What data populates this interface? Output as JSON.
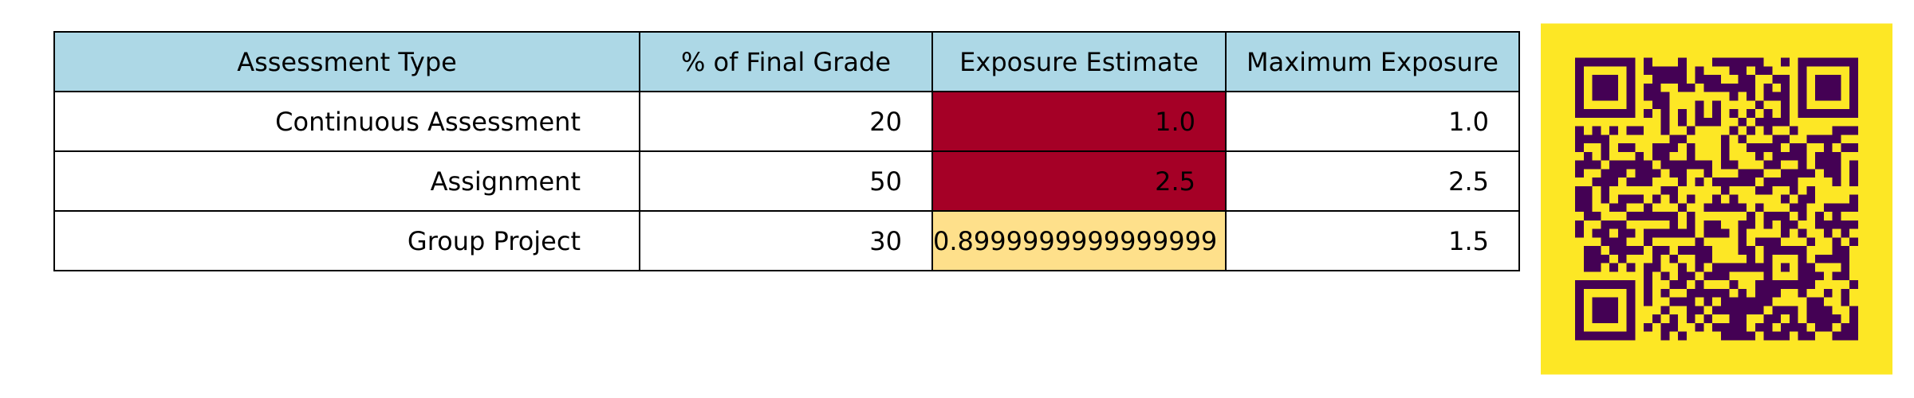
{
  "chart_data": {
    "type": "table",
    "columns": [
      "Assessment Type",
      "% of Final Grade",
      "Exposure Estimate",
      "Maximum Exposure"
    ],
    "rows": [
      [
        "Continuous Assessment",
        "20",
        "1.0",
        "1.0"
      ],
      [
        "Assignment",
        "50",
        "2.5",
        "2.5"
      ],
      [
        "Group Project",
        "30",
        "0.8999999999999999",
        "1.5"
      ]
    ],
    "cell_colors": [
      [
        null,
        null,
        "#a50026",
        null
      ],
      [
        null,
        null,
        "#a50026",
        null
      ],
      [
        null,
        null,
        "#fee08b",
        null
      ]
    ],
    "header_color": "#add8e6"
  },
  "qr_code": {
    "icon": "qr-code-icon",
    "background_color": "#fde725",
    "module_color": "#440154",
    "modules": 33
  }
}
